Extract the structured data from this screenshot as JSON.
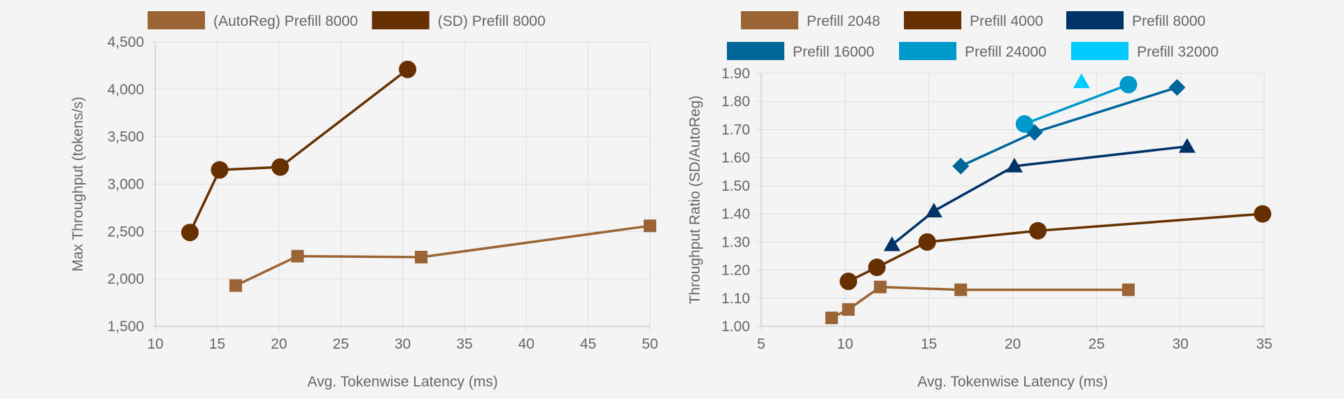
{
  "chart_data": [
    {
      "type": "line",
      "title": "",
      "xlabel": "Avg. Tokenwise Latency (ms)",
      "ylabel": "Max Throughput (tokens/s)",
      "xlim": [
        10,
        50
      ],
      "ylim": [
        1500,
        4500
      ],
      "xticks": [
        10,
        15,
        20,
        25,
        30,
        35,
        40,
        45,
        50
      ],
      "yticks": [
        1500,
        2000,
        2500,
        3000,
        3500,
        4000,
        4500
      ],
      "xtick_labels": [
        "10",
        "15",
        "20",
        "25",
        "30",
        "35",
        "40",
        "45",
        "50"
      ],
      "ytick_labels": [
        "1,500",
        "2,000",
        "2,500",
        "3,000",
        "3,500",
        "4,000",
        "4,500"
      ],
      "grid": true,
      "legend_position": "top",
      "series": [
        {
          "name": "(AutoReg) Prefill 8000",
          "color": "#9b6434",
          "marker": "square",
          "x": [
            16.5,
            21.5,
            31.5,
            50
          ],
          "y": [
            1930,
            2240,
            2230,
            2560
          ]
        },
        {
          "name": "(SD) Prefill 8000",
          "color": "#663000",
          "marker": "circle",
          "x": [
            12.8,
            15.2,
            20.1,
            30.4
          ],
          "y": [
            2490,
            3150,
            3180,
            4210
          ]
        }
      ]
    },
    {
      "type": "line",
      "title": "",
      "xlabel": "Avg. Tokenwise Latency (ms)",
      "ylabel": "Throughput Ratio (SD/AutoReg)",
      "xlim": [
        5,
        35
      ],
      "ylim": [
        1.0,
        1.9
      ],
      "xticks": [
        5,
        10,
        15,
        20,
        25,
        30,
        35
      ],
      "yticks": [
        1.0,
        1.1,
        1.2,
        1.3,
        1.4,
        1.5,
        1.6,
        1.7,
        1.8,
        1.9
      ],
      "xtick_labels": [
        "5",
        "10",
        "15",
        "20",
        "25",
        "30",
        "35"
      ],
      "ytick_labels": [
        "1.00",
        "1.10",
        "1.20",
        "1.30",
        "1.40",
        "1.50",
        "1.60",
        "1.70",
        "1.80",
        "1.90"
      ],
      "grid": true,
      "legend_position": "top",
      "series": [
        {
          "name": "Prefill 2048",
          "color": "#9b6434",
          "marker": "square",
          "x": [
            9.2,
            10.2,
            12.1,
            16.9,
            26.9
          ],
          "y": [
            1.03,
            1.06,
            1.14,
            1.13,
            1.13
          ]
        },
        {
          "name": "Prefill 4000",
          "color": "#663000",
          "marker": "circle",
          "x": [
            10.2,
            11.9,
            14.9,
            21.5,
            34.9
          ],
          "y": [
            1.16,
            1.21,
            1.3,
            1.34,
            1.4
          ]
        },
        {
          "name": "Prefill 8000",
          "color": "#003366",
          "marker": "triangle",
          "x": [
            12.8,
            15.3,
            20.1,
            30.4
          ],
          "y": [
            1.29,
            1.41,
            1.57,
            1.64
          ]
        },
        {
          "name": "Prefill 16000",
          "color": "#006699",
          "marker": "diamond",
          "x": [
            16.9,
            21.3,
            29.8
          ],
          "y": [
            1.57,
            1.69,
            1.85
          ]
        },
        {
          "name": "Prefill 24000",
          "color": "#0099cc",
          "marker": "circle",
          "x": [
            20.7,
            26.9
          ],
          "y": [
            1.72,
            1.86
          ]
        },
        {
          "name": "Prefill 32000",
          "color": "#00ccff",
          "marker": "triangle",
          "x": [
            24.1
          ],
          "y": [
            1.87
          ]
        }
      ]
    }
  ]
}
